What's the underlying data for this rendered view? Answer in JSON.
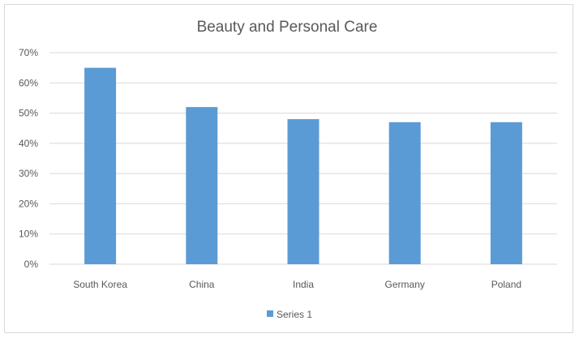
{
  "chart_data": {
    "type": "bar",
    "title": "Beauty and Personal Care",
    "xlabel": "",
    "ylabel": "",
    "categories": [
      "South Korea",
      "China",
      "India",
      "Germany",
      "Poland"
    ],
    "series": [
      {
        "name": "Series 1",
        "values": [
          0.65,
          0.52,
          0.48,
          0.47,
          0.47
        ],
        "color": "#5b9bd5"
      }
    ],
    "ylim": [
      0,
      0.7
    ],
    "yticks": [
      0,
      0.1,
      0.2,
      0.3,
      0.4,
      0.5,
      0.6,
      0.7
    ],
    "ytick_labels": [
      "0%",
      "10%",
      "20%",
      "30%",
      "40%",
      "50%",
      "60%",
      "70%"
    ],
    "grid": true,
    "legend": "bottom",
    "gridline_color": "#d9d9d9",
    "text_color": "#595959"
  }
}
